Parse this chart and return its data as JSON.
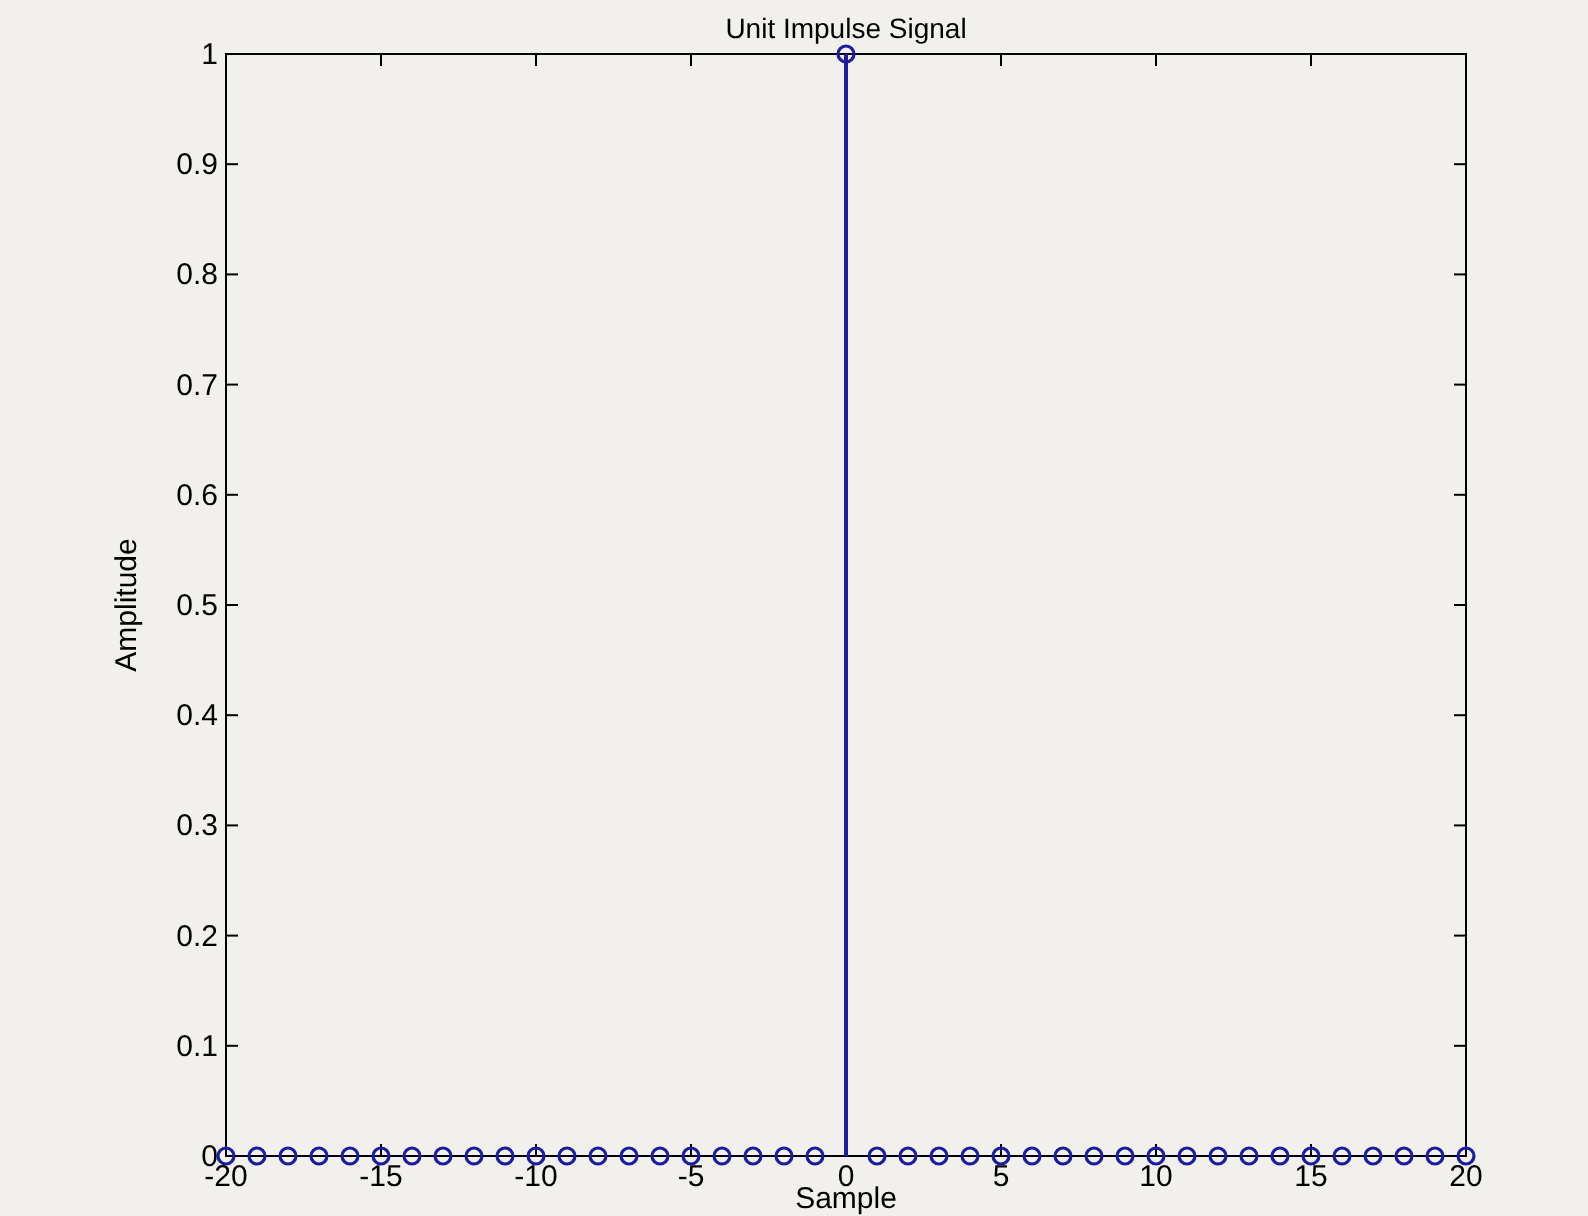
{
  "chart_data": {
    "type": "lollipop",
    "title": "Unit Impulse Signal",
    "xlabel": "Sample",
    "ylabel": "Amplitude",
    "x": [
      -20,
      -19,
      -18,
      -17,
      -16,
      -15,
      -14,
      -13,
      -12,
      -11,
      -10,
      -9,
      -8,
      -7,
      -6,
      -5,
      -4,
      -3,
      -2,
      -1,
      0,
      1,
      2,
      3,
      4,
      5,
      6,
      7,
      8,
      9,
      10,
      11,
      12,
      13,
      14,
      15,
      16,
      17,
      18,
      19,
      20
    ],
    "values": [
      0,
      0,
      0,
      0,
      0,
      0,
      0,
      0,
      0,
      0,
      0,
      0,
      0,
      0,
      0,
      0,
      0,
      0,
      0,
      0,
      1,
      0,
      0,
      0,
      0,
      0,
      0,
      0,
      0,
      0,
      0,
      0,
      0,
      0,
      0,
      0,
      0,
      0,
      0,
      0,
      0
    ],
    "color": "#1c1c9e",
    "marker": "circle",
    "grid": false,
    "xlim": [
      -20,
      20
    ],
    "xticks": [
      -20,
      -15,
      -10,
      -5,
      0,
      5,
      10,
      15,
      20
    ],
    "ylim": [
      0,
      1
    ],
    "yticks": [
      0,
      0.1,
      0.2,
      0.3,
      0.4,
      0.5,
      0.6,
      0.7,
      0.8,
      0.9,
      1
    ]
  }
}
